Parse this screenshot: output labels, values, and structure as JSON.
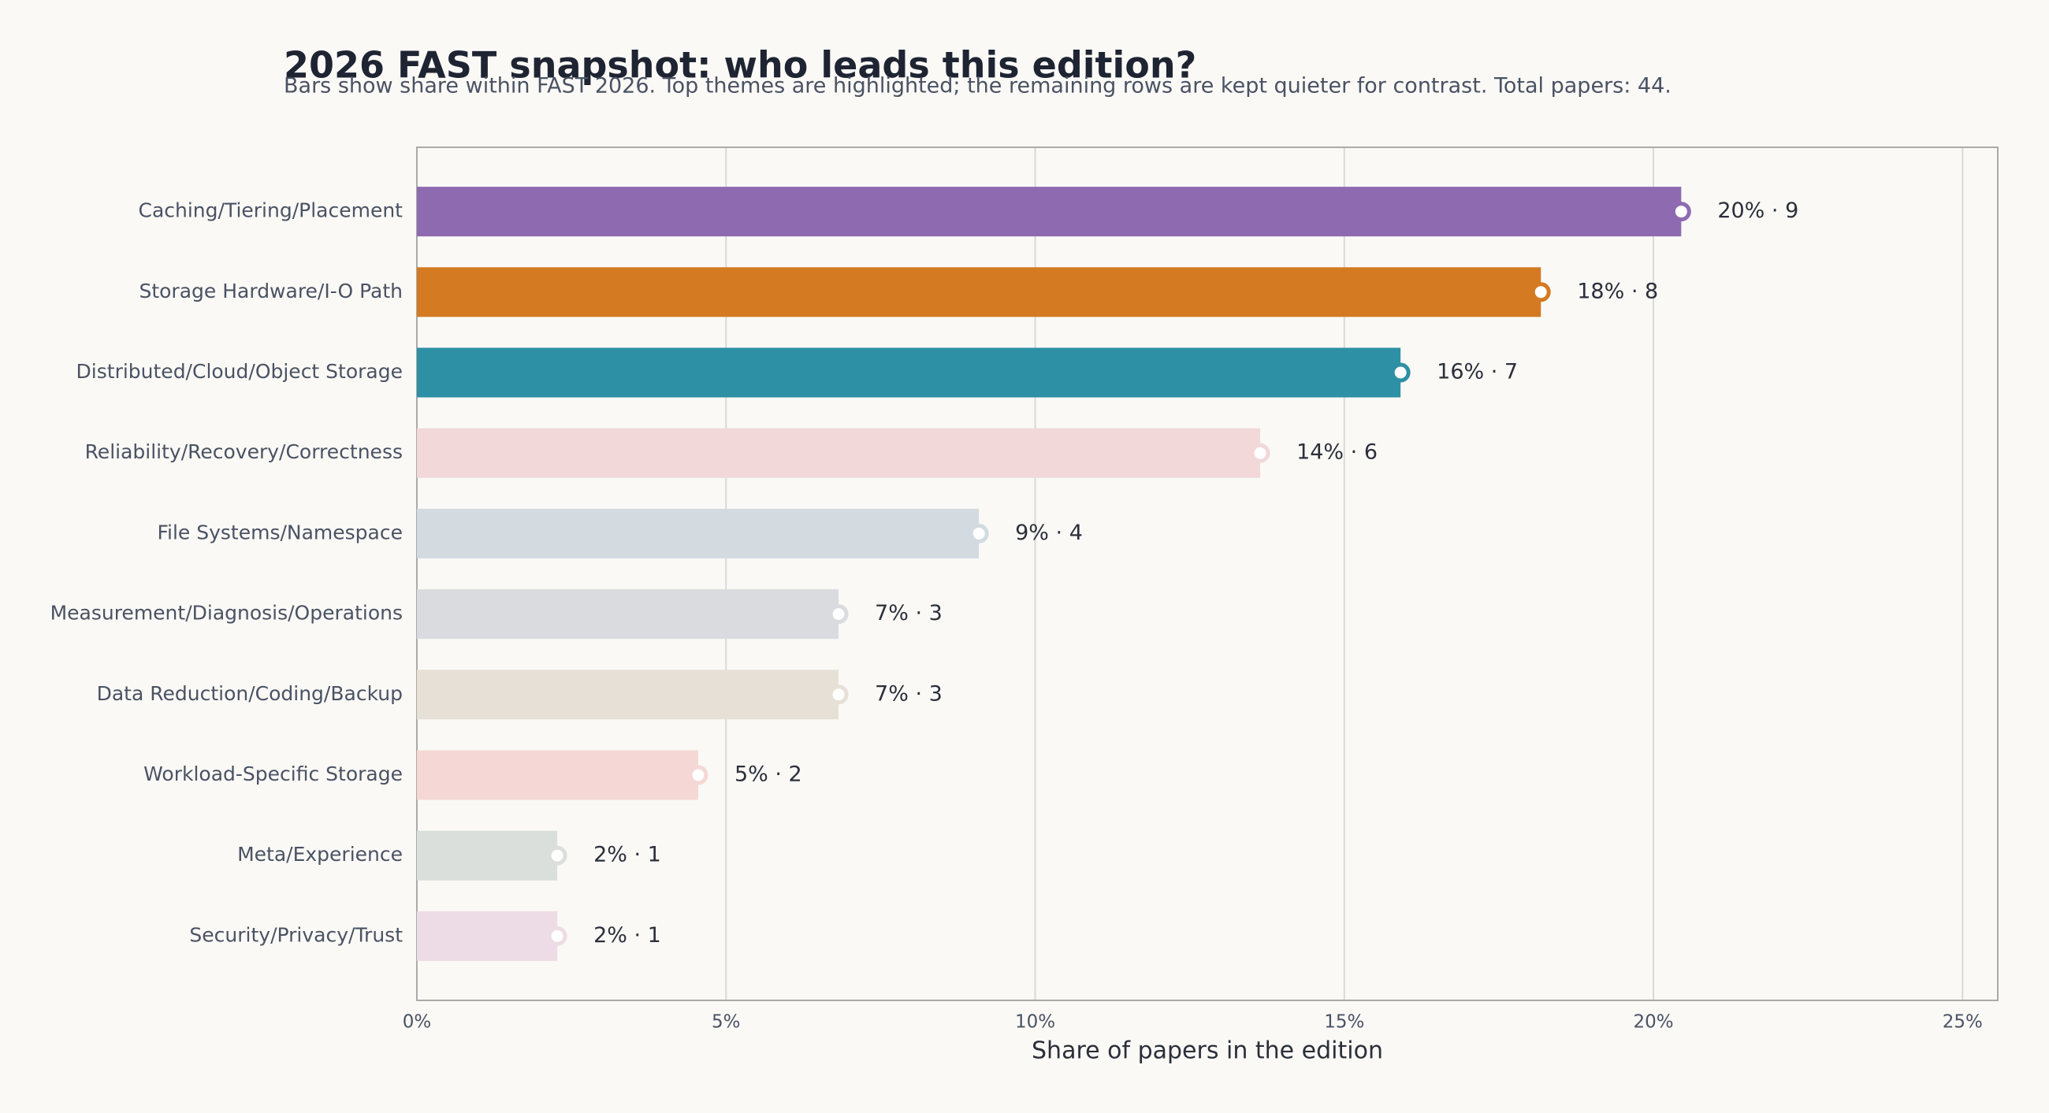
{
  "chart_data": {
    "type": "bar",
    "orientation": "horizontal",
    "title": "2026 FAST snapshot: who leads this edition?",
    "subtitle": "Bars show share within FAST 2026. Top themes are highlighted; the remaining rows are kept quieter for contrast. Total papers: 44.",
    "x_label": "Share of papers in the edition",
    "categories": [
      "Caching/Tiering/Placement",
      "Storage Hardware/I-O Path",
      "Distributed/Cloud/Object Storage",
      "Reliability/Recovery/Correctness",
      "File Systems/Namespace",
      "Measurement/Diagnosis/Operations",
      "Data Reduction/Coding/Backup",
      "Workload-Specific Storage",
      "Meta/Experience",
      "Security/Privacy/Trust"
    ],
    "values": [
      20.45,
      18.18,
      15.91,
      13.64,
      9.09,
      6.82,
      6.82,
      4.55,
      2.27,
      2.27
    ],
    "value_labels": [
      "20% · 9",
      "18% · 8",
      "16% · 7",
      "14% · 6",
      "9% · 4",
      "7% · 3",
      "7% · 3",
      "5% · 2",
      "2% · 1",
      "2% · 1"
    ],
    "colors": [
      "#8e6bb1",
      "#d37a22",
      "#2e90a4",
      "#f2d8d9",
      "#d3dbe1",
      "#d9dbdf",
      "#e7e0d7",
      "#f5d8d5",
      "#dadfdb",
      "#eddbe5"
    ],
    "xlim": [
      0,
      25.57
    ],
    "xticks": [
      {
        "value": 0,
        "label": "0%"
      },
      {
        "value": 5,
        "label": "5%"
      },
      {
        "value": 10,
        "label": "10%"
      },
      {
        "value": 15,
        "label": "15%"
      },
      {
        "value": 20,
        "label": "20%"
      },
      {
        "value": 25,
        "label": "25%"
      }
    ],
    "grid": true
  }
}
